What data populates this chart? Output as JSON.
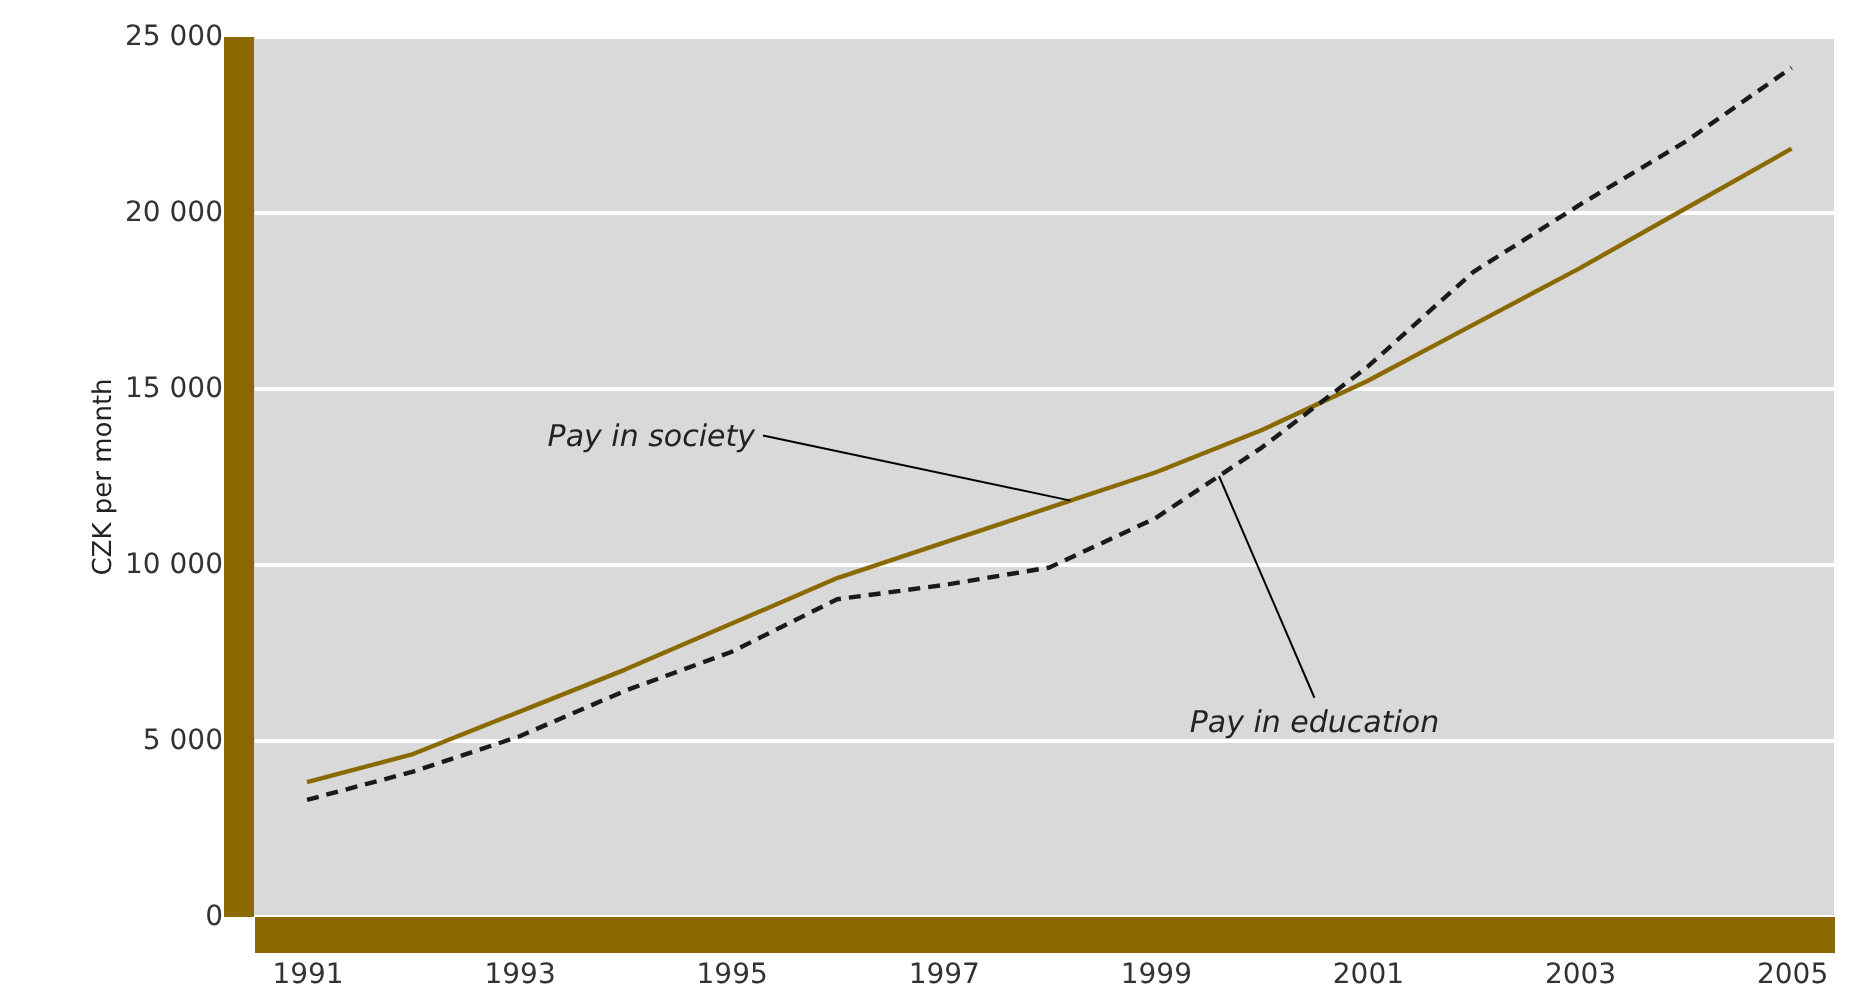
{
  "chart_data": {
    "type": "line",
    "ylabel": "CZK per month",
    "x": [
      1991,
      1992,
      1993,
      1994,
      1995,
      1996,
      1997,
      1998,
      1999,
      2000,
      2001,
      2002,
      2003,
      2004,
      2005
    ],
    "series": [
      {
        "color": "#8a6a00",
        "line_style": "solid",
        "values": [
          3800,
          4600,
          5800,
          7000,
          8300,
          9600,
          10600,
          11600,
          12600,
          13800,
          15200,
          16800,
          18400,
          20100,
          21800
        ]
      },
      {
        "color": "#1a1a1a",
        "line_style": "dashed",
        "values": [
          3300,
          4100,
          5100,
          6400,
          7500,
          9000,
          9400,
          9900,
          11300,
          13300,
          15600,
          18300,
          20200,
          22000,
          24100
        ]
      }
    ],
    "annotations": [
      {
        "text": "Pay in society",
        "x": 1998.2,
        "y": 11800
      },
      {
        "text": "Pay in education",
        "x": 1999.6,
        "y": 12500
      }
    ],
    "xlim": [
      1990.5,
      2005.4
    ],
    "xticks": [
      1991,
      1993,
      1995,
      1997,
      1999,
      2001,
      2003,
      2005
    ],
    "ylim": [
      0,
      25000
    ],
    "yticks": [
      0,
      {
        "value": 5000,
        "label": "5 000"
      },
      {
        "value": 10000,
        "label": "10 000"
      },
      {
        "value": 15000,
        "label": "15 000"
      },
      {
        "value": 20000,
        "label": "20 000"
      },
      {
        "value": 25000,
        "label": "25 000"
      }
    ],
    "grid": "y",
    "marker": "none"
  }
}
